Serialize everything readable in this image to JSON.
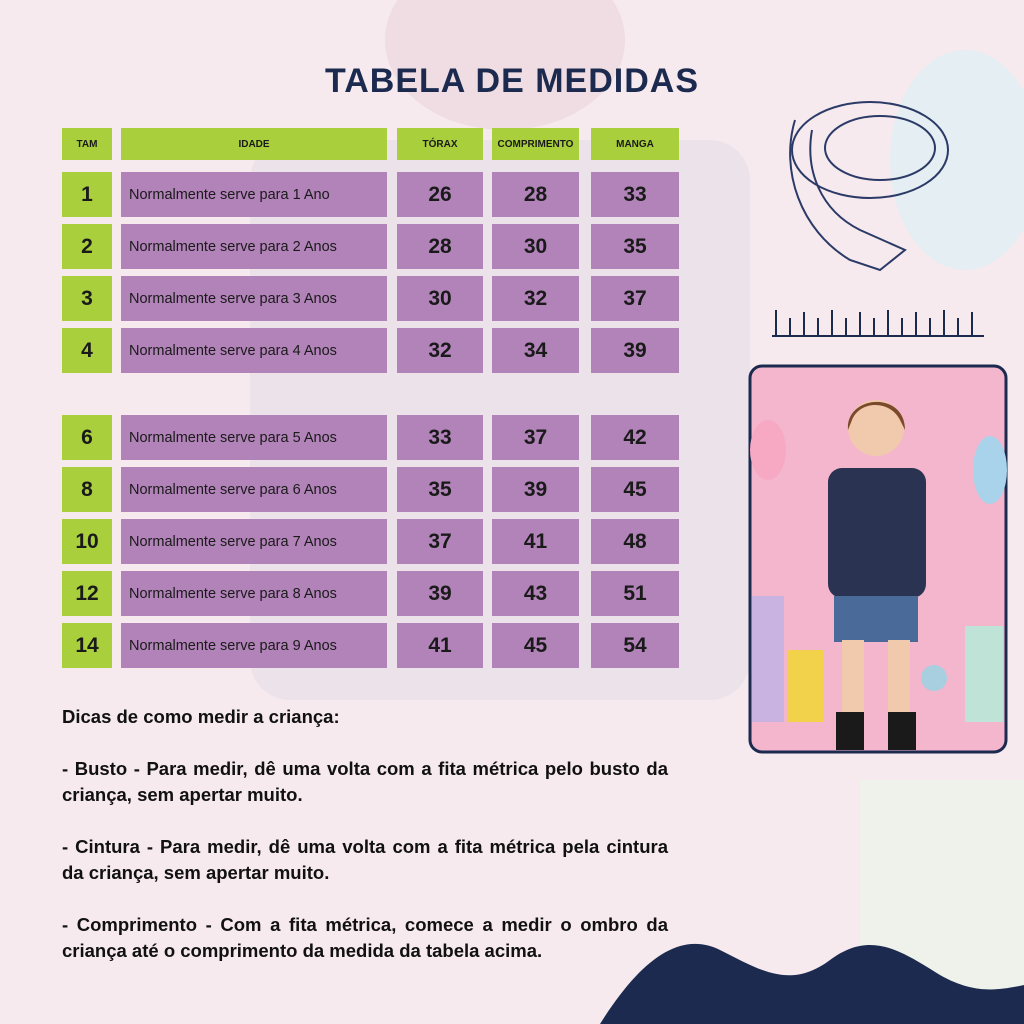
{
  "title": "TABELA DE MEDIDAS",
  "table": {
    "headers": [
      "TAM",
      "IDADE",
      "TÓRAX",
      "COMPRIMENTO",
      "MANGA"
    ],
    "groups": [
      [
        [
          "1",
          "Normalmente serve para 1 Ano",
          "26",
          "28",
          "33"
        ],
        [
          "2",
          "Normalmente serve para 2 Anos",
          "28",
          "30",
          "35"
        ],
        [
          "3",
          "Normalmente serve para 3 Anos",
          "30",
          "32",
          "37"
        ],
        [
          "4",
          "Normalmente serve para 4 Anos",
          "32",
          "34",
          "39"
        ]
      ],
      [
        [
          "6",
          "Normalmente serve para 5 Anos",
          "33",
          "37",
          "42"
        ],
        [
          "8",
          "Normalmente serve para 6 Anos",
          "35",
          "39",
          "45"
        ],
        [
          "10",
          "Normalmente serve para 7 Anos",
          "37",
          "41",
          "48"
        ],
        [
          "12",
          "Normalmente serve para 8 Anos",
          "39",
          "43",
          "51"
        ],
        [
          "14",
          "Normalmente serve para 9 Anos",
          "41",
          "45",
          "54"
        ]
      ]
    ]
  },
  "tips": {
    "heading": "Dicas de como medir a criança:",
    "items": [
      "- Busto - Para medir, dê uma volta com a fita métrica pelo busto da criança, sem apertar muito.",
      "- Cintura - Para medir, dê uma volta com a fita métrica pela cintura da criança, sem apertar muito.",
      "- Comprimento - Com a fita métrica, comece a medir o ombro da criança até o comprimento da medida da tabela acima."
    ]
  }
}
